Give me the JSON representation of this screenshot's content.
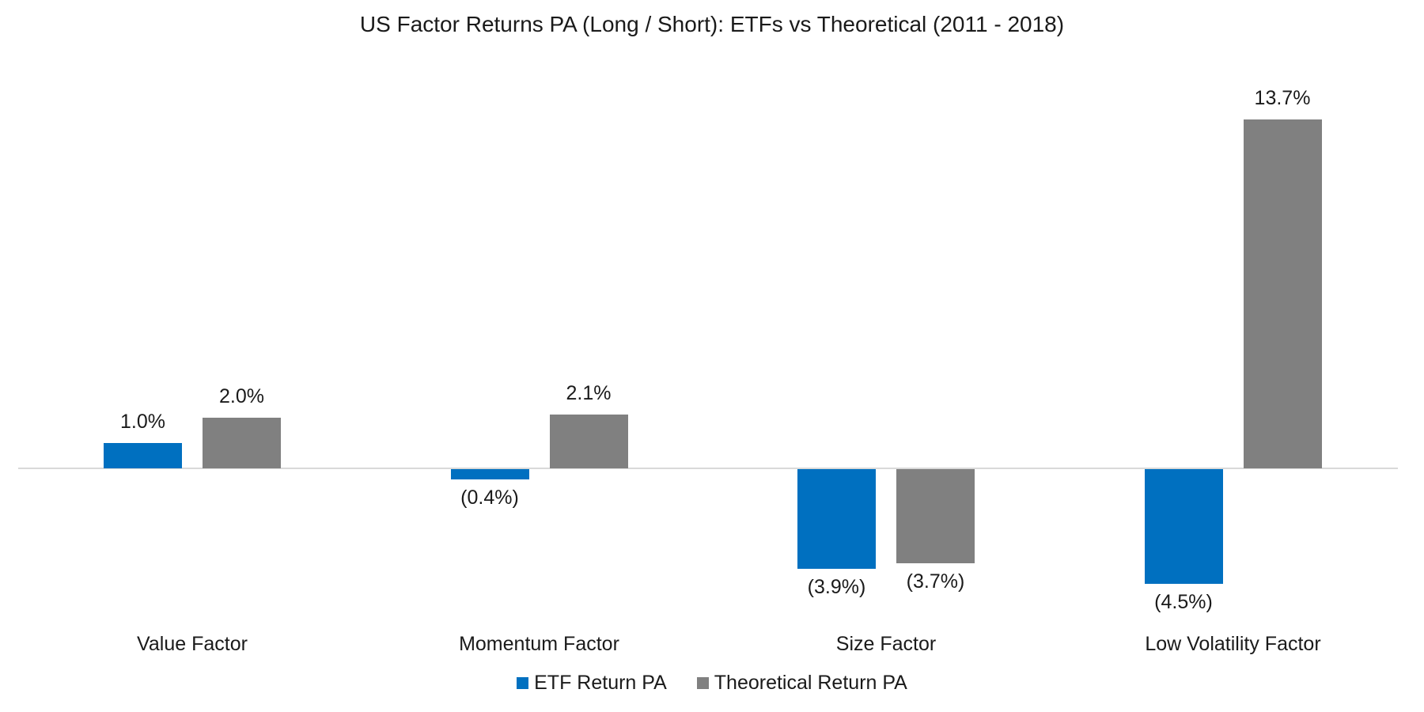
{
  "chart_data": {
    "type": "bar",
    "title": "US Factor Returns PA (Long / Short): ETFs vs Theoretical (2011 - 2018)",
    "unit": "% per annum",
    "value_format": "percent, negative values shown in parentheses",
    "categories": [
      "Value Factor",
      "Momentum Factor",
      "Size Factor",
      "Low Volatility Factor"
    ],
    "series": [
      {
        "name": "ETF Return PA",
        "color": "#0070C0",
        "values": [
          1.0,
          -0.4,
          -3.9,
          -4.5
        ],
        "labels": [
          "1.0%",
          "(0.4%)",
          "(3.9%)",
          "(4.5%)"
        ]
      },
      {
        "name": "Theoretical Return PA",
        "color": "#808080",
        "values": [
          2.0,
          2.1,
          -3.7,
          13.7
        ],
        "labels": [
          "2.0%",
          "2.1%",
          "(3.7%)",
          "13.7%"
        ]
      }
    ],
    "ylim": [
      -6,
      15
    ],
    "grid": false,
    "y_axis_visible": false,
    "x_axis_line_color": "#D9D9D9",
    "legend_position": "bottom",
    "data_labels_shown": true
  }
}
